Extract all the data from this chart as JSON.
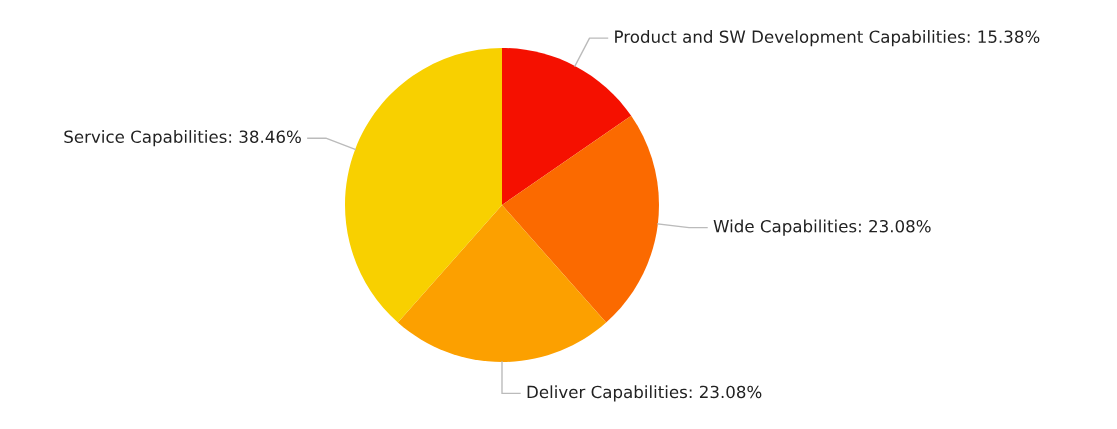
{
  "chart_data": {
    "type": "pie",
    "categories": [
      "Product and SW Development Capabilities",
      "Wide Capabilities",
      "Deliver Capabilities",
      "Service Capabilities"
    ],
    "values": [
      15.38,
      23.08,
      23.08,
      38.46
    ],
    "value_labels": [
      "15.38%",
      "23.08%",
      "23.08%",
      "38.46%"
    ],
    "colors": [
      "#f51000",
      "#fb6a00",
      "#fca000",
      "#f8d000"
    ],
    "legend": false
  }
}
